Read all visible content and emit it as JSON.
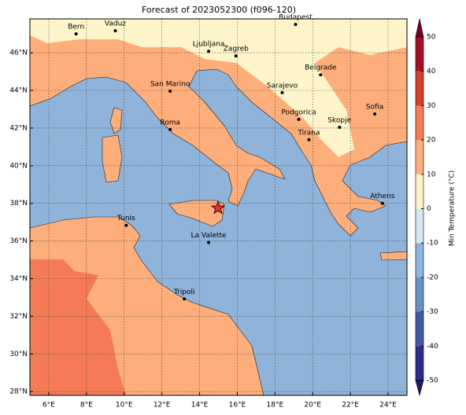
{
  "chart_data": {
    "type": "map",
    "title": "Forecast of 2023052300 (f096-120)",
    "xlim": [
      5,
      25
    ],
    "ylim": [
      27.8,
      47.8
    ],
    "xticks": [
      {
        "value": 6,
        "label": "6°E"
      },
      {
        "value": 8,
        "label": "8°E"
      },
      {
        "value": 10,
        "label": "10°E"
      },
      {
        "value": 12,
        "label": "12°E"
      },
      {
        "value": 14,
        "label": "14°E"
      },
      {
        "value": 16,
        "label": "16°E"
      },
      {
        "value": 18,
        "label": "18°E"
      },
      {
        "value": 20,
        "label": "20°E"
      },
      {
        "value": 22,
        "label": "22°E"
      },
      {
        "value": 24,
        "label": "24°E"
      }
    ],
    "yticks": [
      {
        "value": 28,
        "label": "28°N"
      },
      {
        "value": 30,
        "label": "30°N"
      },
      {
        "value": 32,
        "label": "32°N"
      },
      {
        "value": 34,
        "label": "34°N"
      },
      {
        "value": 36,
        "label": "36°N"
      },
      {
        "value": 38,
        "label": "38°N"
      },
      {
        "value": 40,
        "label": "40°N"
      },
      {
        "value": 42,
        "label": "42°N"
      },
      {
        "value": 44,
        "label": "44°N"
      },
      {
        "value": 46,
        "label": "46°N"
      }
    ],
    "grid": true,
    "cities": [
      {
        "name": "Bern",
        "lon": 7.45,
        "lat": 47.0
      },
      {
        "name": "Vaduz",
        "lon": 9.53,
        "lat": 47.17
      },
      {
        "name": "Budapest",
        "lon": 19.09,
        "lat": 47.5
      },
      {
        "name": "Ljubljana",
        "lon": 14.48,
        "lat": 46.08
      },
      {
        "name": "Zagreb",
        "lon": 15.93,
        "lat": 45.83
      },
      {
        "name": "Belgrade",
        "lon": 20.42,
        "lat": 44.83
      },
      {
        "name": "Sarajevo",
        "lon": 18.38,
        "lat": 43.88
      },
      {
        "name": "San Marino",
        "lon": 12.44,
        "lat": 43.96
      },
      {
        "name": "Sofia",
        "lon": 23.29,
        "lat": 42.75
      },
      {
        "name": "Podgorica",
        "lon": 19.26,
        "lat": 42.46
      },
      {
        "name": "Skopje",
        "lon": 21.42,
        "lat": 42.04
      },
      {
        "name": "Roma",
        "lon": 12.44,
        "lat": 41.92
      },
      {
        "name": "Tirana",
        "lon": 19.8,
        "lat": 41.38
      },
      {
        "name": "Athens",
        "lon": 23.7,
        "lat": 38.0
      },
      {
        "name": "Tunis",
        "lon": 10.11,
        "lat": 36.83
      },
      {
        "name": "La Valette",
        "lon": 14.48,
        "lat": 35.92
      },
      {
        "name": "Tripoli",
        "lon": 13.19,
        "lat": 32.92
      }
    ],
    "star": {
      "lon": 14.98,
      "lat": 37.75,
      "color": "#e8302a"
    },
    "colorbar": {
      "label": "Min Temperature (°C)",
      "ticks": [
        -50,
        -40,
        -30,
        -20,
        -10,
        0,
        10,
        20,
        30,
        40,
        50
      ],
      "colors": [
        "#2c2c8c",
        "#3f5ba6",
        "#6592c4",
        "#8fb3d9",
        "#d3e8f3",
        "#fdf5c9",
        "#fdae7b",
        "#f57b56",
        "#d6402f",
        "#a50f26"
      ],
      "extend_colors": [
        "#1a1a70",
        "#7a0020"
      ]
    }
  }
}
